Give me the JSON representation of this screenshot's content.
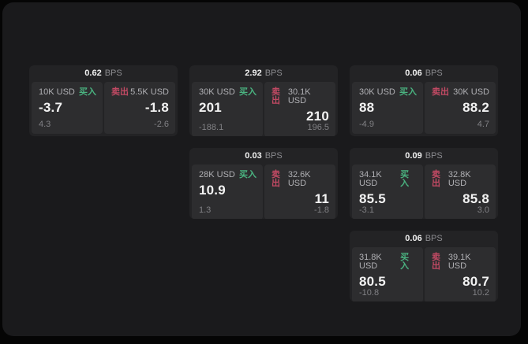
{
  "colors": {
    "outer_bg": "#050505",
    "panel_bg": "#1a1a1c",
    "card_bg": "#232325",
    "tile_bg": "#2d2d2f",
    "text_primary": "#f2f2f2",
    "text_label": "#b0b0b4",
    "text_unit": "#8c8c90",
    "text_muted": "#808084",
    "buy_green": "#4ab380",
    "sell_red": "#c24a64"
  },
  "labels": {
    "bps_unit": "BPS",
    "buy": "买入",
    "sell": "卖出"
  },
  "cards": [
    {
      "row": 1,
      "col": 1,
      "bps": "0.62",
      "buy": {
        "size": "10K USD",
        "value": "-3.7",
        "delta": "4.3"
      },
      "sell": {
        "size": "5.5K USD",
        "value": "-1.8",
        "delta": "-2.6"
      }
    },
    {
      "row": 1,
      "col": 2,
      "bps": "2.92",
      "buy": {
        "size": "30K USD",
        "value": "201",
        "delta": "-188.1"
      },
      "sell": {
        "size": "30.1K USD",
        "value": "210",
        "delta": "196.5"
      }
    },
    {
      "row": 1,
      "col": 3,
      "bps": "0.06",
      "buy": {
        "size": "30K USD",
        "value": "88",
        "delta": "-4.9"
      },
      "sell": {
        "size": "30K USD",
        "value": "88.2",
        "delta": "4.7"
      }
    },
    {
      "row": 2,
      "col": 2,
      "bps": "0.03",
      "buy": {
        "size": "28K USD",
        "value": "10.9",
        "delta": "1.3"
      },
      "sell": {
        "size": "32.6K USD",
        "value": "11",
        "delta": "-1.8"
      }
    },
    {
      "row": 2,
      "col": 3,
      "bps": "0.09",
      "buy": {
        "size": "34.1K USD",
        "value": "85.5",
        "delta": "-3.1"
      },
      "sell": {
        "size": "32.8K USD",
        "value": "85.8",
        "delta": "3.0"
      }
    },
    {
      "row": 3,
      "col": 3,
      "bps": "0.06",
      "buy": {
        "size": "31.8K USD",
        "value": "80.5",
        "delta": "-10.8"
      },
      "sell": {
        "size": "39.1K USD",
        "value": "80.7",
        "delta": "10.2"
      }
    }
  ]
}
